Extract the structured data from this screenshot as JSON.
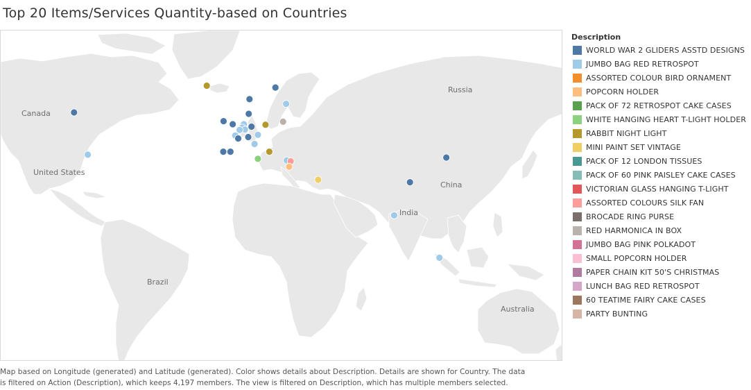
{
  "title": "Top 20 Items/Services Quantity-based on Countries",
  "caption": {
    "line1": "Map based on Longitude (generated) and Latitude (generated).  Color shows details about Description.  Details are shown for Country. The data",
    "line2": "is filtered on Action (Description), which keeps 4,197 members. The view is filtered on Description, which has multiple members selected."
  },
  "map_labels": [
    "Canada",
    "United States",
    "Russia",
    "China",
    "India",
    "Brazil",
    "Australia"
  ],
  "chart_data": {
    "type": "scatter",
    "subtype": "symbol-map",
    "legend_title": "Description",
    "legend_placement": "right",
    "categories": [
      {
        "name": "WORLD WAR 2 GLIDERS ASSTD DESIGNS",
        "color": "#4e79a7"
      },
      {
        "name": "JUMBO BAG RED RETROSPOT",
        "color": "#a0cbe8"
      },
      {
        "name": "ASSORTED COLOUR BIRD ORNAMENT",
        "color": "#f28e2b"
      },
      {
        "name": "POPCORN HOLDER",
        "color": "#ffbe7d"
      },
      {
        "name": "PACK OF 72 RETROSPOT CAKE CASES",
        "color": "#59a14f"
      },
      {
        "name": "WHITE HANGING HEART T-LIGHT HOLDER",
        "color": "#8cd17d"
      },
      {
        "name": "RABBIT NIGHT LIGHT",
        "color": "#b6992d"
      },
      {
        "name": "MINI PAINT SET VINTAGE",
        "color": "#f1ce63"
      },
      {
        "name": "PACK OF 12 LONDON TISSUES",
        "color": "#499894"
      },
      {
        "name": "PACK OF 60 PINK PAISLEY CAKE CASES",
        "color": "#86bcb6"
      },
      {
        "name": "VICTORIAN GLASS HANGING T-LIGHT",
        "color": "#e15759"
      },
      {
        "name": "ASSORTED COLOURS SILK FAN",
        "color": "#ff9d9a"
      },
      {
        "name": "BROCADE RING PURSE",
        "color": "#79706e"
      },
      {
        "name": "RED  HARMONICA IN BOX",
        "color": "#bab0ac"
      },
      {
        "name": "JUMBO BAG PINK POLKADOT",
        "color": "#d37295"
      },
      {
        "name": "SMALL POPCORN HOLDER",
        "color": "#fabfd2"
      },
      {
        "name": "PAPER CHAIN KIT 50'S CHRISTMAS",
        "color": "#b07aa1"
      },
      {
        "name": "LUNCH BAG RED RETROSPOT",
        "color": "#d4a6c8"
      },
      {
        "name": "60 TEATIME FAIRY CAKE CASES",
        "color": "#9d7660"
      },
      {
        "name": "PARTY BUNTING",
        "color": "#d7b5a6"
      }
    ],
    "points": [
      {
        "lon": -106,
        "lat": 56.5,
        "category": 0
      },
      {
        "lon": -97,
        "lat": 38,
        "category": 1
      },
      {
        "lon": -19,
        "lat": 65,
        "category": 6
      },
      {
        "lon": 26,
        "lat": 64.5,
        "category": 0
      },
      {
        "lon": 9,
        "lat": 61,
        "category": 0
      },
      {
        "lon": 8.5,
        "lat": 56,
        "category": 0
      },
      {
        "lon": 33,
        "lat": 59.5,
        "category": 1
      },
      {
        "lon": 31,
        "lat": 53,
        "category": 13
      },
      {
        "lon": -8,
        "lat": 53.2,
        "category": 0
      },
      {
        "lon": -2,
        "lat": 52,
        "category": 0
      },
      {
        "lon": 5.3,
        "lat": 52,
        "category": 1
      },
      {
        "lon": 4.3,
        "lat": 50.6,
        "category": 1
      },
      {
        "lon": 10.3,
        "lat": 51,
        "category": 0
      },
      {
        "lon": 19.5,
        "lat": 51.8,
        "category": 6
      },
      {
        "lon": 6,
        "lat": 49.8,
        "category": 1
      },
      {
        "lon": 2.5,
        "lat": 49.6,
        "category": 1
      },
      {
        "lon": -0.3,
        "lat": 47.2,
        "category": 1
      },
      {
        "lon": 1.6,
        "lat": 45.9,
        "category": 0
      },
      {
        "lon": 8.2,
        "lat": 46.5,
        "category": 0
      },
      {
        "lon": 14.5,
        "lat": 47.5,
        "category": 1
      },
      {
        "lon": 12.3,
        "lat": 43.3,
        "category": 1
      },
      {
        "lon": -8.2,
        "lat": 39.5,
        "category": 0
      },
      {
        "lon": -3.5,
        "lat": 39.5,
        "category": 0
      },
      {
        "lon": 22,
        "lat": 39.5,
        "category": 6
      },
      {
        "lon": 14.5,
        "lat": 35.8,
        "category": 5
      },
      {
        "lon": 33.5,
        "lat": 35,
        "category": 1
      },
      {
        "lon": 36,
        "lat": 34.5,
        "category": 11
      },
      {
        "lon": 35,
        "lat": 31.5,
        "category": 3
      },
      {
        "lon": 54,
        "lat": 24,
        "category": 7
      },
      {
        "lon": 138,
        "lat": 36.5,
        "category": 0
      },
      {
        "lon": 114.2,
        "lat": 22.5,
        "category": 0
      },
      {
        "lon": 103.8,
        "lat": 1.4,
        "category": 1
      },
      {
        "lon": 133.5,
        "lat": -25.5,
        "category": 1
      }
    ]
  }
}
